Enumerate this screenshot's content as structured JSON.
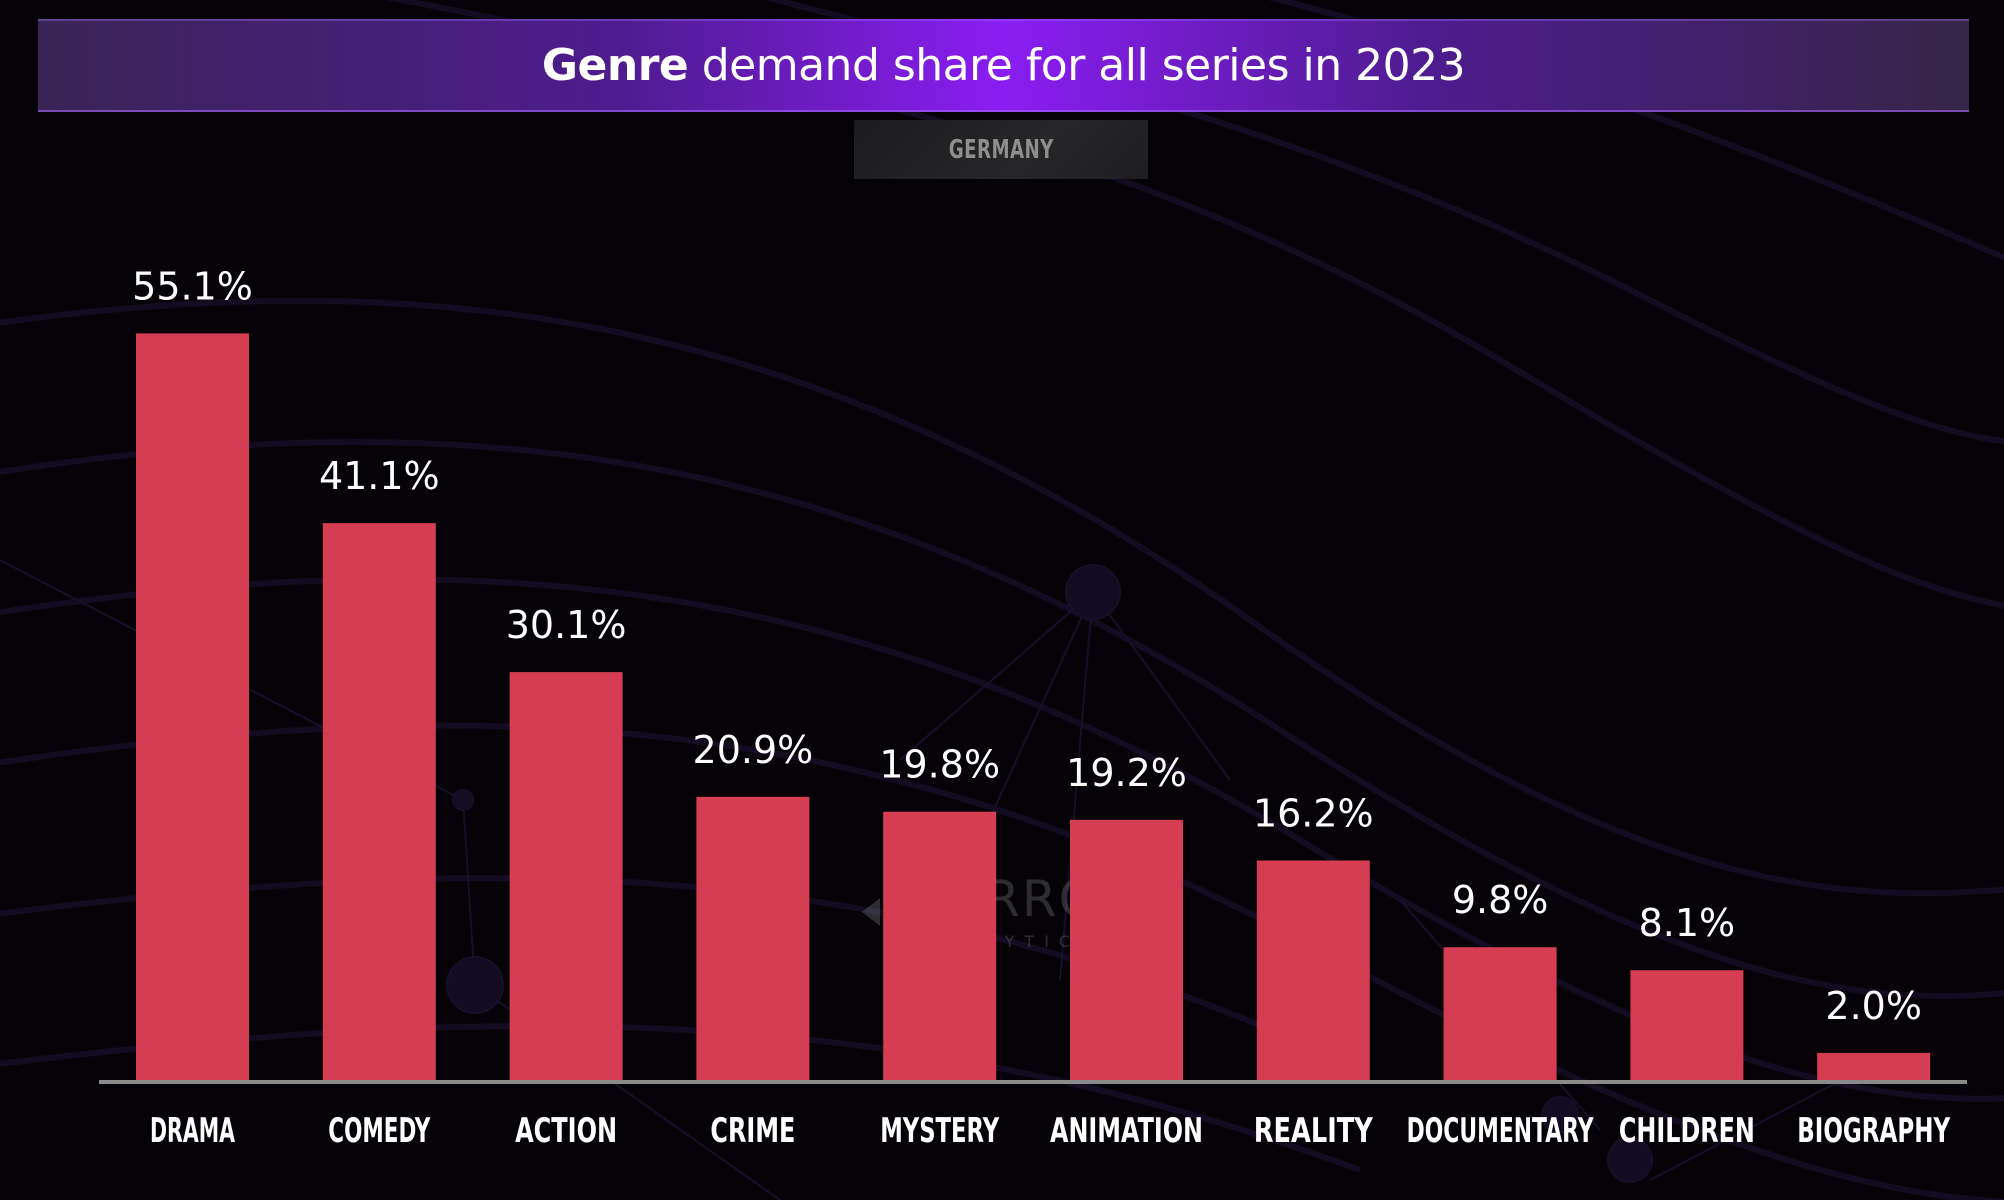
{
  "header": {
    "title_bold": "Genre",
    "title_rest": " demand share for all series in 2023",
    "country": "GERMANY"
  },
  "watermark": {
    "brand": "PARROT",
    "sub": "ANALYTICS",
    "icon": "parrot-logo-icon"
  },
  "colors": {
    "bar": "#d43d52",
    "axis": "#8a8a8a",
    "title_accent": "#8a1df2"
  },
  "chart_data": {
    "type": "bar",
    "title": "Genre demand share for all series in 2023",
    "subtitle": "GERMANY",
    "xlabel": "",
    "ylabel": "",
    "ylim": [
      0,
      60
    ],
    "grid": false,
    "legend": "none",
    "categories": [
      "DRAMA",
      "COMEDY",
      "ACTION",
      "CRIME",
      "MYSTERY",
      "ANIMATION",
      "REALITY",
      "DOCUMENTARY",
      "CHILDREN",
      "BIOGRAPHY"
    ],
    "values": [
      55.1,
      41.1,
      30.1,
      20.9,
      19.8,
      19.2,
      16.2,
      9.8,
      8.1,
      2.0
    ],
    "value_labels": [
      "55.1%",
      "41.1%",
      "30.1%",
      "20.9%",
      "19.8%",
      "19.2%",
      "16.2%",
      "9.8%",
      "8.1%",
      "2.0%"
    ],
    "unit": "%"
  }
}
